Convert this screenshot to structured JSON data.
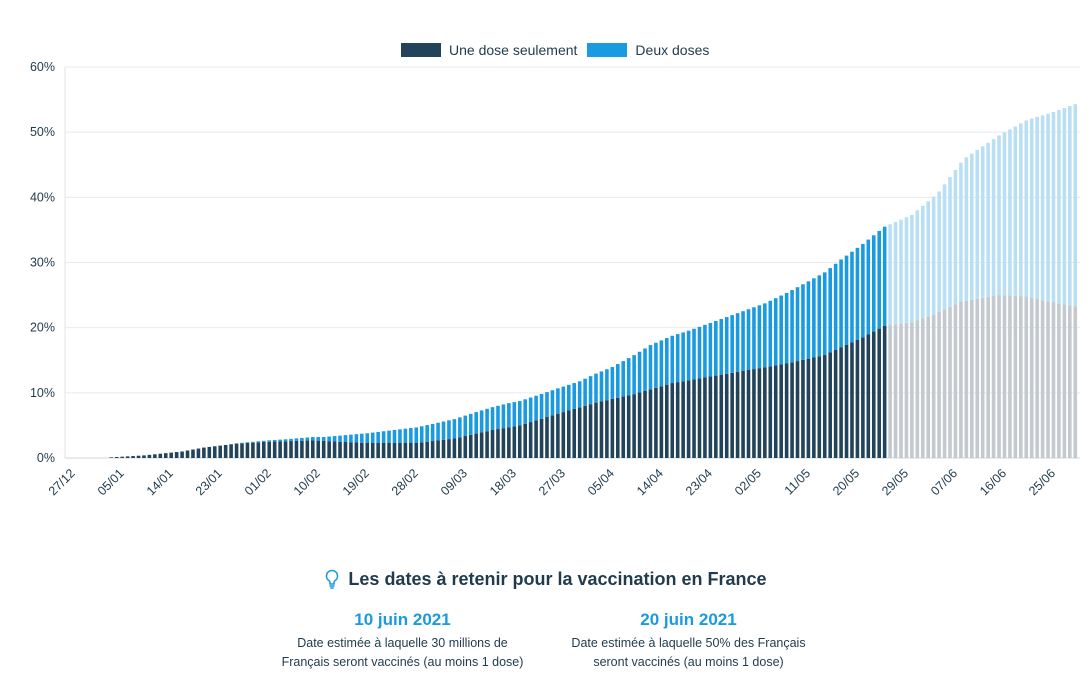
{
  "chart_data": {
    "type": "bar",
    "stacked": true,
    "x_start": "2020-12-27",
    "x_end": "2021-06-30",
    "projection_start": "2021-05-27",
    "xticks": [
      "27/12",
      "05/01",
      "14/01",
      "23/01",
      "01/02",
      "10/02",
      "19/02",
      "28/02",
      "09/03",
      "18/03",
      "27/03",
      "05/04",
      "14/04",
      "23/04",
      "02/05",
      "11/05",
      "20/05",
      "29/05",
      "07/06",
      "16/06",
      "25/06"
    ],
    "yticks": [
      "0%",
      "10%",
      "20%",
      "30%",
      "40%",
      "50%",
      "60%"
    ],
    "ylim": [
      0,
      60
    ],
    "grid": true,
    "legend_position": "top",
    "series": [
      {
        "name": "Une dose seulement",
        "color": "#22435a",
        "projected_color": "#c3c9ce",
        "points": [
          [
            "2021-01-04",
            0.1
          ],
          [
            "2021-01-10",
            0.4
          ],
          [
            "2021-01-17",
            1.0
          ],
          [
            "2021-01-21",
            1.6
          ],
          [
            "2021-01-27",
            2.2
          ],
          [
            "2021-02-02",
            2.5
          ],
          [
            "2021-02-10",
            2.7
          ],
          [
            "2021-02-20",
            2.3
          ],
          [
            "2021-03-01",
            2.3
          ],
          [
            "2021-03-08",
            3.0
          ],
          [
            "2021-03-15",
            4.3
          ],
          [
            "2021-03-20",
            5.0
          ],
          [
            "2021-03-27",
            6.8
          ],
          [
            "2021-04-03",
            8.5
          ],
          [
            "2021-04-10",
            9.8
          ],
          [
            "2021-04-17",
            11.5
          ],
          [
            "2021-04-24",
            12.5
          ],
          [
            "2021-05-01",
            13.5
          ],
          [
            "2021-05-08",
            14.5
          ],
          [
            "2021-05-15",
            15.8
          ],
          [
            "2021-05-22",
            18.5
          ],
          [
            "2021-05-26",
            20.3
          ],
          [
            "2021-05-31",
            20.8
          ],
          [
            "2021-06-04",
            22.0
          ],
          [
            "2021-06-09",
            24.0
          ],
          [
            "2021-06-16",
            25.0
          ],
          [
            "2021-06-21",
            24.8
          ],
          [
            "2021-06-25",
            24.0
          ],
          [
            "2021-06-30",
            23.3
          ]
        ]
      },
      {
        "name": "Deux doses",
        "color": "#1a9ae0",
        "projected_color": "#b9dff5",
        "points": [
          [
            "2021-01-04",
            0.0
          ],
          [
            "2021-01-17",
            0.0
          ],
          [
            "2021-01-25",
            0.0
          ],
          [
            "2021-02-05",
            0.3
          ],
          [
            "2021-02-12",
            0.6
          ],
          [
            "2021-02-20",
            1.5
          ],
          [
            "2021-02-28",
            2.3
          ],
          [
            "2021-03-06",
            2.8
          ],
          [
            "2021-03-12",
            3.3
          ],
          [
            "2021-03-18",
            3.7
          ],
          [
            "2021-03-24",
            3.8
          ],
          [
            "2021-03-31",
            4.0
          ],
          [
            "2021-04-06",
            4.9
          ],
          [
            "2021-04-13",
            6.8
          ],
          [
            "2021-04-20",
            7.6
          ],
          [
            "2021-04-27",
            8.7
          ],
          [
            "2021-05-04",
            9.8
          ],
          [
            "2021-05-11",
            11.6
          ],
          [
            "2021-05-18",
            13.5
          ],
          [
            "2021-05-26",
            15.2
          ],
          [
            "2021-05-31",
            16.5
          ],
          [
            "2021-06-05",
            18.5
          ],
          [
            "2021-06-10",
            22.0
          ],
          [
            "2021-06-16",
            24.5
          ],
          [
            "2021-06-22",
            27.5
          ],
          [
            "2021-06-30",
            31.0
          ]
        ]
      }
    ]
  },
  "info": {
    "title": "Les dates à retenir pour la vaccination en France",
    "facts": [
      {
        "date": "10 juin 2021",
        "text": "Date estimée à laquelle 30 millions de Français seront vaccinés (au moins 1 dose)"
      },
      {
        "date": "20 juin 2021",
        "text": "Date estimée à laquelle 50% des Français seront vaccinés (au moins 1 dose)"
      }
    ]
  }
}
